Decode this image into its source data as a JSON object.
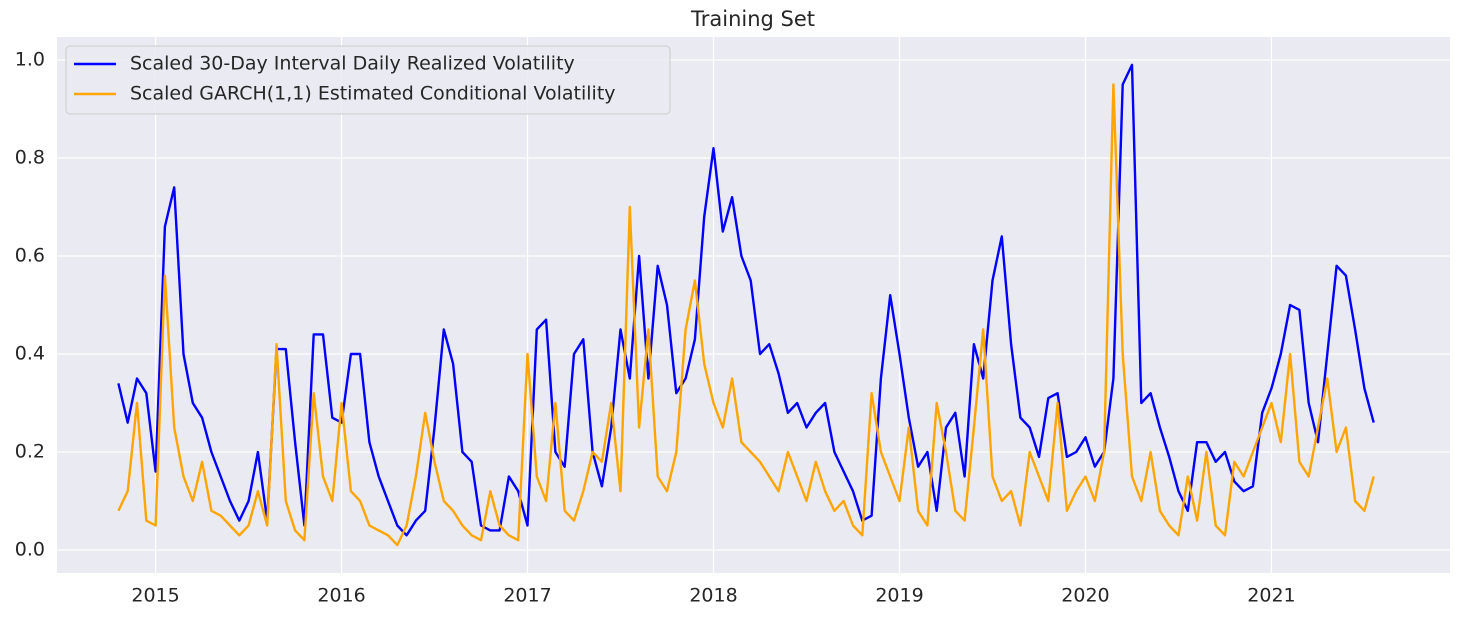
{
  "chart_data": {
    "type": "line",
    "title": "Training Set",
    "x": [
      2014.8,
      2014.85,
      2014.9,
      2014.95,
      2015.0,
      2015.05,
      2015.1,
      2015.15,
      2015.2,
      2015.25,
      2015.3,
      2015.35,
      2015.4,
      2015.45,
      2015.5,
      2015.55,
      2015.6,
      2015.65,
      2015.7,
      2015.75,
      2015.8,
      2015.85,
      2015.9,
      2015.95,
      2016.0,
      2016.05,
      2016.1,
      2016.15,
      2016.2,
      2016.25,
      2016.3,
      2016.35,
      2016.4,
      2016.45,
      2016.5,
      2016.55,
      2016.6,
      2016.65,
      2016.7,
      2016.75,
      2016.8,
      2016.85,
      2016.9,
      2016.95,
      2017.0,
      2017.05,
      2017.1,
      2017.15,
      2017.2,
      2017.25,
      2017.3,
      2017.35,
      2017.4,
      2017.45,
      2017.5,
      2017.55,
      2017.6,
      2017.65,
      2017.7,
      2017.75,
      2017.8,
      2017.85,
      2017.9,
      2017.95,
      2018.0,
      2018.05,
      2018.1,
      2018.15,
      2018.2,
      2018.25,
      2018.3,
      2018.35,
      2018.4,
      2018.45,
      2018.5,
      2018.55,
      2018.6,
      2018.65,
      2018.7,
      2018.75,
      2018.8,
      2018.85,
      2018.9,
      2018.95,
      2019.0,
      2019.05,
      2019.1,
      2019.15,
      2019.2,
      2019.25,
      2019.3,
      2019.35,
      2019.4,
      2019.45,
      2019.5,
      2019.55,
      2019.6,
      2019.65,
      2019.7,
      2019.75,
      2019.8,
      2019.85,
      2019.9,
      2019.95,
      2020.0,
      2020.05,
      2020.1,
      2020.15,
      2020.2,
      2020.25,
      2020.3,
      2020.35,
      2020.4,
      2020.45,
      2020.5,
      2020.55,
      2020.6,
      2020.65,
      2020.7,
      2020.75,
      2020.8,
      2020.85,
      2020.9,
      2020.95,
      2021.0,
      2021.05,
      2021.1,
      2021.15,
      2021.2,
      2021.25,
      2021.3,
      2021.35,
      2021.4,
      2021.45,
      2021.5,
      2021.55
    ],
    "series": [
      {
        "name": "Scaled 30-Day Interval Daily Realized Volatility",
        "color": "#0000ff",
        "values": [
          0.34,
          0.26,
          0.35,
          0.32,
          0.16,
          0.66,
          0.74,
          0.4,
          0.3,
          0.27,
          0.2,
          0.15,
          0.1,
          0.06,
          0.1,
          0.2,
          0.06,
          0.41,
          0.41,
          0.22,
          0.05,
          0.44,
          0.44,
          0.27,
          0.26,
          0.4,
          0.4,
          0.22,
          0.15,
          0.1,
          0.05,
          0.03,
          0.06,
          0.08,
          0.25,
          0.45,
          0.38,
          0.2,
          0.18,
          0.05,
          0.04,
          0.04,
          0.15,
          0.12,
          0.05,
          0.45,
          0.47,
          0.2,
          0.17,
          0.4,
          0.43,
          0.2,
          0.13,
          0.25,
          0.45,
          0.35,
          0.6,
          0.35,
          0.58,
          0.5,
          0.32,
          0.35,
          0.43,
          0.68,
          0.82,
          0.65,
          0.72,
          0.6,
          0.55,
          0.4,
          0.42,
          0.36,
          0.28,
          0.3,
          0.25,
          0.28,
          0.3,
          0.2,
          0.16,
          0.12,
          0.06,
          0.07,
          0.35,
          0.52,
          0.4,
          0.27,
          0.17,
          0.2,
          0.08,
          0.25,
          0.28,
          0.15,
          0.42,
          0.35,
          0.55,
          0.64,
          0.42,
          0.27,
          0.25,
          0.19,
          0.31,
          0.32,
          0.19,
          0.2,
          0.23,
          0.17,
          0.2,
          0.35,
          0.95,
          0.99,
          0.3,
          0.32,
          0.25,
          0.19,
          0.12,
          0.08,
          0.22,
          0.22,
          0.18,
          0.2,
          0.14,
          0.12,
          0.13,
          0.28,
          0.33,
          0.4,
          0.5,
          0.49,
          0.3,
          0.22,
          0.4,
          0.58,
          0.56,
          0.45,
          0.33,
          0.26
        ]
      },
      {
        "name": "Scaled GARCH(1,1) Estimated Conditional Volatility",
        "color": "#ffa500",
        "values": [
          0.08,
          0.12,
          0.3,
          0.06,
          0.05,
          0.56,
          0.25,
          0.15,
          0.1,
          0.18,
          0.08,
          0.07,
          0.05,
          0.03,
          0.05,
          0.12,
          0.05,
          0.42,
          0.1,
          0.04,
          0.02,
          0.32,
          0.15,
          0.1,
          0.3,
          0.12,
          0.1,
          0.05,
          0.04,
          0.03,
          0.01,
          0.05,
          0.15,
          0.28,
          0.18,
          0.1,
          0.08,
          0.05,
          0.03,
          0.02,
          0.12,
          0.05,
          0.03,
          0.02,
          0.4,
          0.15,
          0.1,
          0.3,
          0.08,
          0.06,
          0.12,
          0.2,
          0.18,
          0.3,
          0.12,
          0.7,
          0.25,
          0.45,
          0.15,
          0.12,
          0.2,
          0.45,
          0.55,
          0.38,
          0.3,
          0.25,
          0.35,
          0.22,
          0.2,
          0.18,
          0.15,
          0.12,
          0.2,
          0.15,
          0.1,
          0.18,
          0.12,
          0.08,
          0.1,
          0.05,
          0.03,
          0.32,
          0.2,
          0.15,
          0.1,
          0.25,
          0.08,
          0.05,
          0.3,
          0.2,
          0.08,
          0.06,
          0.25,
          0.45,
          0.15,
          0.1,
          0.12,
          0.05,
          0.2,
          0.15,
          0.1,
          0.3,
          0.08,
          0.12,
          0.15,
          0.1,
          0.2,
          0.95,
          0.4,
          0.15,
          0.1,
          0.2,
          0.08,
          0.05,
          0.03,
          0.15,
          0.06,
          0.2,
          0.05,
          0.03,
          0.18,
          0.15,
          0.2,
          0.25,
          0.3,
          0.22,
          0.4,
          0.18,
          0.15,
          0.25,
          0.35,
          0.2,
          0.25,
          0.1,
          0.08,
          0.15
        ]
      }
    ],
    "xlim": [
      2014.47,
      2021.96
    ],
    "xticks": [
      2015,
      2016,
      2017,
      2018,
      2019,
      2020,
      2021
    ],
    "ylim": [
      -0.047,
      1.047
    ],
    "yticks": [
      {
        "value": 0,
        "label": "0.0"
      },
      0.2,
      0.4,
      0.6,
      0.8,
      {
        "value": 1,
        "label": "1.0"
      }
    ],
    "grid": true,
    "legend": "upper left"
  }
}
